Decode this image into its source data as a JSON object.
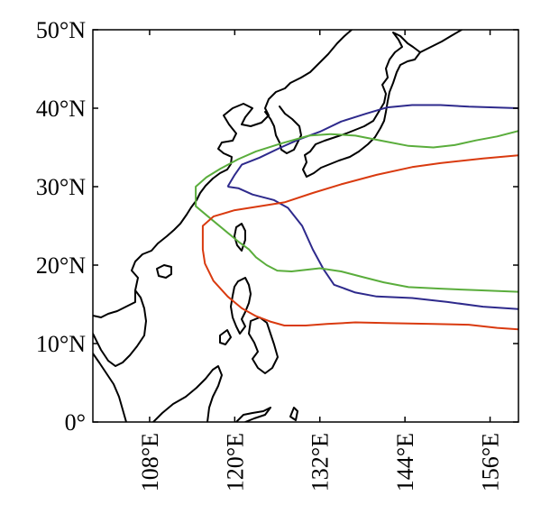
{
  "map": {
    "x_axis": {
      "ticks": [
        {
          "lon": 108,
          "label": "108°E"
        },
        {
          "lon": 120,
          "label": "120°E"
        },
        {
          "lon": 132,
          "label": "132°E"
        },
        {
          "lon": 144,
          "label": "144°E"
        },
        {
          "lon": 156,
          "label": "156°E"
        }
      ],
      "range": [
        100,
        160
      ]
    },
    "y_axis": {
      "ticks": [
        {
          "lat": 0,
          "label": "0°"
        },
        {
          "lat": 10,
          "label": "10°N"
        },
        {
          "lat": 20,
          "label": "20°N"
        },
        {
          "lat": 30,
          "label": "30°N"
        },
        {
          "lat": 40,
          "label": "40°N"
        },
        {
          "lat": 50,
          "label": "50°N"
        }
      ],
      "range": [
        0,
        50
      ]
    },
    "coastline_color": "#000000",
    "tracks": [
      {
        "color": "#2e2a8c",
        "points": [
          [
            119.0,
            30.0
          ],
          [
            120.5,
            29.8
          ],
          [
            122.5,
            29.0
          ],
          [
            125.5,
            28.3
          ],
          [
            127.5,
            27.3
          ],
          [
            129.5,
            25.0
          ],
          [
            131.0,
            22.0
          ],
          [
            132.5,
            19.5
          ],
          [
            134.0,
            17.5
          ],
          [
            137.0,
            16.5
          ],
          [
            140.0,
            16.0
          ],
          [
            145.0,
            15.8
          ],
          [
            150.0,
            15.3
          ],
          [
            155.0,
            14.7
          ],
          [
            160.0,
            14.4
          ]
        ]
      },
      {
        "color": "#2e2a8c",
        "points": [
          [
            119.0,
            30.0
          ],
          [
            120.0,
            31.5
          ],
          [
            121.0,
            32.8
          ],
          [
            123.5,
            33.7
          ],
          [
            126.5,
            35.0
          ],
          [
            129.0,
            36.0
          ],
          [
            132.0,
            37.0
          ],
          [
            135.0,
            38.3
          ],
          [
            138.5,
            39.3
          ],
          [
            141.5,
            40.1
          ],
          [
            145.0,
            40.4
          ],
          [
            149.0,
            40.4
          ],
          [
            153.0,
            40.2
          ],
          [
            160.0,
            40.0
          ]
        ]
      },
      {
        "color": "#5aad3c",
        "points": [
          [
            133.5,
            36.7
          ],
          [
            130.5,
            36.5
          ],
          [
            126.5,
            35.5
          ],
          [
            123.0,
            34.5
          ],
          [
            120.5,
            33.5
          ],
          [
            118.0,
            32.3
          ],
          [
            116.0,
            31.2
          ],
          [
            114.5,
            30.0
          ],
          [
            114.5,
            27.5
          ],
          [
            116.5,
            26.0
          ],
          [
            118.5,
            24.5
          ],
          [
            120.5,
            23.0
          ],
          [
            122.0,
            22.0
          ],
          [
            123.0,
            21.0
          ],
          [
            124.5,
            20.0
          ],
          [
            126.0,
            19.3
          ],
          [
            128.0,
            19.2
          ],
          [
            132.0,
            19.6
          ],
          [
            135.0,
            19.2
          ],
          [
            138.0,
            18.5
          ],
          [
            141.0,
            17.8
          ],
          [
            144.5,
            17.2
          ],
          [
            149.0,
            17.0
          ],
          [
            154.0,
            16.8
          ],
          [
            160.0,
            16.6
          ]
        ]
      },
      {
        "color": "#5aad3c",
        "points": [
          [
            133.5,
            36.7
          ],
          [
            137.0,
            36.5
          ],
          [
            141.0,
            35.8
          ],
          [
            144.5,
            35.2
          ],
          [
            148.0,
            35.0
          ],
          [
            151.0,
            35.3
          ],
          [
            154.0,
            35.9
          ],
          [
            157.0,
            36.4
          ],
          [
            160.0,
            37.1
          ]
        ]
      },
      {
        "color": "#d93a0f",
        "points": [
          [
            160.0,
            34.0
          ],
          [
            155.0,
            33.6
          ],
          [
            149.0,
            33.0
          ],
          [
            145.0,
            32.5
          ],
          [
            140.0,
            31.5
          ],
          [
            135.0,
            30.3
          ],
          [
            131.0,
            29.2
          ],
          [
            127.0,
            28.0
          ],
          [
            123.5,
            27.5
          ],
          [
            120.0,
            27.0
          ],
          [
            117.0,
            26.2
          ],
          [
            115.5,
            25.0
          ],
          [
            115.5,
            22.0
          ],
          [
            115.8,
            20.2
          ],
          [
            117.0,
            18.0
          ],
          [
            119.0,
            16.0
          ],
          [
            121.0,
            14.5
          ],
          [
            123.0,
            13.5
          ],
          [
            125.0,
            12.8
          ],
          [
            127.0,
            12.3
          ],
          [
            130.0,
            12.3
          ],
          [
            133.0,
            12.5
          ],
          [
            137.0,
            12.7
          ],
          [
            142.0,
            12.6
          ],
          [
            148.0,
            12.5
          ],
          [
            153.0,
            12.4
          ],
          [
            157.0,
            12.0
          ],
          [
            160.0,
            11.8
          ]
        ]
      }
    ]
  }
}
